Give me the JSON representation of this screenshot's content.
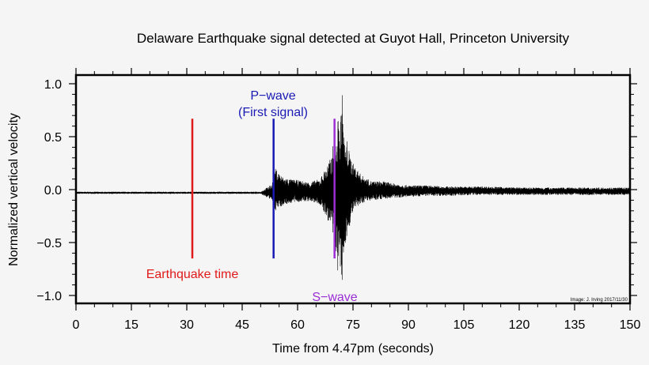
{
  "chart_data": {
    "type": "line",
    "title": "Delaware Earthquake signal detected at Guyot Hall, Princeton University",
    "xlabel": "Time from 4.47pm (seconds)",
    "ylabel": "Normalized vertical velocity",
    "xlim": [
      0,
      150
    ],
    "ylim": [
      -1.05,
      1.05
    ],
    "x_ticks": [
      0,
      15,
      30,
      45,
      60,
      75,
      90,
      105,
      120,
      135,
      150
    ],
    "x_tick_labels": [
      "0",
      "15",
      "30",
      "45",
      "60",
      "75",
      "90",
      "105",
      "120",
      "135",
      "150"
    ],
    "y_ticks": [
      1.0,
      0.5,
      0.0,
      -0.5,
      -1.0
    ],
    "y_tick_labels": [
      "1.0",
      "0.5",
      "0.0",
      "−0.5",
      "−1.0"
    ],
    "grid": false,
    "credit": "Image: J. Irving 2017/11/30",
    "series": [
      {
        "color": "#000000",
        "x": [
          0,
          10,
          20,
          30,
          40,
          50,
          53,
          54,
          56,
          58,
          60,
          63,
          66,
          69,
          70,
          70.5,
          71,
          71.5,
          72,
          72.5,
          73,
          73.5,
          74,
          74.5,
          75,
          76,
          77,
          78,
          80,
          83,
          86,
          90,
          95,
          100,
          110,
          120,
          130,
          140,
          150
        ],
        "y_max": [
          -0.02,
          -0.02,
          -0.02,
          -0.02,
          -0.02,
          -0.02,
          0.05,
          0.2,
          0.12,
          0.1,
          0.09,
          0.07,
          0.1,
          0.3,
          0.5,
          0.45,
          0.7,
          0.55,
          1.0,
          0.55,
          0.4,
          0.5,
          0.35,
          0.3,
          0.25,
          0.2,
          0.15,
          0.12,
          0.08,
          0.08,
          0.06,
          0.04,
          0.04,
          0.03,
          0.03,
          0.02,
          0.02,
          0.02,
          0.02
        ],
        "y_min": [
          -0.04,
          -0.04,
          -0.04,
          -0.04,
          -0.04,
          -0.04,
          -0.1,
          -0.2,
          -0.15,
          -0.13,
          -0.12,
          -0.11,
          -0.14,
          -0.35,
          -0.55,
          -0.6,
          -0.85,
          -0.75,
          -1.0,
          -0.6,
          -0.5,
          -0.45,
          -0.35,
          -0.3,
          -0.22,
          -0.18,
          -0.15,
          -0.12,
          -0.1,
          -0.09,
          -0.08,
          -0.07,
          -0.06,
          -0.06,
          -0.05,
          -0.05,
          -0.05,
          -0.05,
          -0.05
        ]
      }
    ],
    "markers": [
      {
        "label": "Earthquake time",
        "x": 31.5,
        "y_range": [
          -0.65,
          0.67
        ],
        "color": "#e01a1a"
      },
      {
        "label": "P−wave",
        "sublabel": "(First signal)",
        "x": 53.5,
        "y_range": [
          -0.65,
          0.67
        ],
        "color": "#1a1ab4"
      },
      {
        "label": "S−wave",
        "x": 70.0,
        "y_range": [
          -0.65,
          0.67
        ],
        "color": "#9b2ed4"
      }
    ]
  }
}
